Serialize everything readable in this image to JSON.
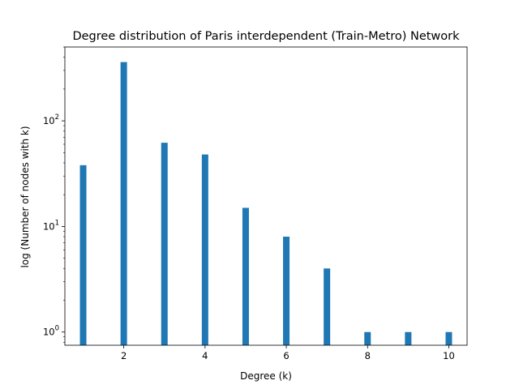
{
  "chart_data": {
    "type": "bar",
    "title": "Degree distribution of Paris interdependent (Train-Metro) Network",
    "xlabel": "Degree (k)",
    "ylabel": "log (Number of nodes with k)",
    "y_scale": "log",
    "x": [
      1,
      2,
      3,
      4,
      5,
      6,
      7,
      8,
      9,
      10
    ],
    "values": [
      38,
      360,
      62,
      48,
      15,
      8,
      4,
      1,
      1,
      1
    ],
    "xlim": [
      0.55,
      10.45
    ],
    "ylim": [
      0.75,
      500
    ],
    "x_ticks": [
      2,
      4,
      6,
      8,
      10
    ],
    "y_ticks": [
      {
        "value": 1,
        "base": "10",
        "exp": "0"
      },
      {
        "value": 10,
        "base": "10",
        "exp": "1"
      },
      {
        "value": 100,
        "base": "10",
        "exp": "2"
      }
    ],
    "grid": false,
    "bar_color": "#1f77b4"
  }
}
